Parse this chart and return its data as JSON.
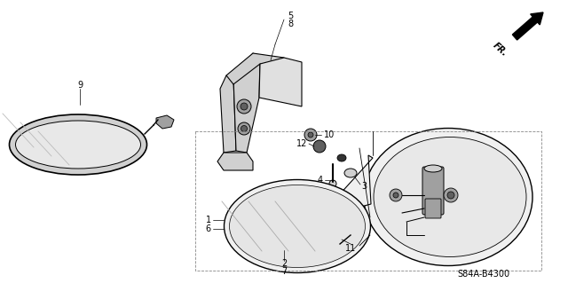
{
  "bg_color": "#ffffff",
  "diagram_code": "S84A-B4300",
  "fr_label": "FR.",
  "fig_width": 6.4,
  "fig_height": 3.19,
  "dpi": 100,
  "line_color": "#000000",
  "text_color": "#000000",
  "gray_light": "#d0d0d0",
  "gray_mid": "#a0a0a0",
  "gray_dark": "#606060"
}
